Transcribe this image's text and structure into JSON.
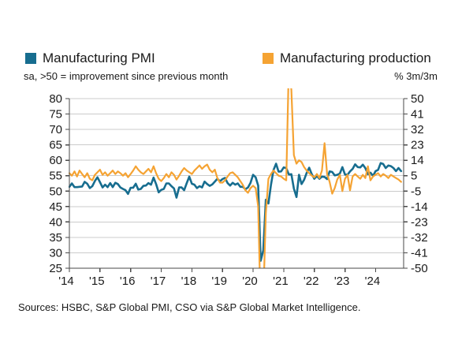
{
  "legend": {
    "pmi": {
      "label": "Manufacturing PMI",
      "subtitle": "sa, >50 = improvement since previous month"
    },
    "production": {
      "label": "Manufacturing production",
      "subtitle": "% 3m/3m"
    }
  },
  "source": "Sources: HSBC, S&P Global PMI, CSO via S&P Global Market Intelligence.",
  "colors": {
    "pmi_line": "#176d8f",
    "production_line": "#f5a333",
    "gridline": "#cbcbcb",
    "axis": "#4a4a4a",
    "text": "#1a1a1a"
  },
  "chart_data": {
    "type": "line",
    "title": "",
    "x_tick_labels": [
      "'14",
      "'15",
      "'16",
      "'17",
      "'18",
      "'19",
      "'20",
      "'21",
      "'22",
      "'23",
      "'24"
    ],
    "x_range": [
      2014,
      2024.9167
    ],
    "left_axis": {
      "label": "sa, >50 = improvement since previous month",
      "ticks": [
        80,
        75,
        70,
        65,
        60,
        55,
        50,
        45,
        40,
        35,
        30,
        25
      ],
      "range": [
        25,
        80
      ]
    },
    "right_axis": {
      "label": "% 3m/3m",
      "ticks": [
        50,
        41,
        32,
        23,
        14,
        5,
        -5,
        -14,
        -23,
        -32,
        -41,
        -50
      ]
    },
    "grid": true,
    "legend_position": "top",
    "series": [
      {
        "name": "Manufacturing PMI",
        "axis": "left",
        "color": "#176d8f",
        "start": 2014.0,
        "interval_years": 0.0833333,
        "values": [
          51.4,
          52.5,
          51.3,
          51.3,
          51.4,
          51.5,
          53.0,
          52.4,
          51.0,
          51.6,
          53.3,
          54.5,
          52.9,
          51.2,
          52.1,
          51.3,
          52.6,
          51.3,
          52.7,
          52.3,
          51.2,
          50.7,
          50.3,
          49.1,
          51.1,
          51.1,
          52.4,
          50.5,
          50.7,
          51.7,
          51.8,
          52.6,
          52.1,
          54.4,
          52.3,
          49.6,
          50.4,
          50.7,
          52.5,
          52.5,
          51.6,
          50.9,
          47.9,
          51.2,
          51.2,
          50.3,
          52.6,
          54.7,
          52.4,
          52.1,
          51.0,
          51.6,
          51.2,
          53.1,
          52.3,
          51.7,
          52.2,
          53.1,
          54.0,
          53.2,
          53.9,
          54.3,
          52.6,
          51.8,
          52.7,
          52.1,
          52.5,
          51.4,
          51.4,
          50.6,
          51.2,
          52.7,
          55.3,
          54.5,
          51.8,
          27.4,
          30.8,
          47.2,
          46.0,
          52.0,
          56.8,
          58.9,
          56.3,
          56.4,
          57.7,
          57.5,
          55.4,
          55.5,
          50.8,
          48.1,
          55.3,
          52.3,
          53.7,
          55.9,
          57.6,
          55.5,
          54.0,
          54.9,
          54.0,
          54.7,
          54.6,
          53.9,
          56.4,
          56.2,
          55.1,
          55.3,
          55.7,
          57.8,
          55.4,
          55.3,
          56.4,
          57.2,
          58.7,
          57.8,
          57.7,
          58.6,
          57.5,
          55.5,
          56.0,
          54.9,
          56.5,
          56.9,
          59.1,
          58.8,
          57.5,
          58.3,
          58.1,
          57.5,
          56.5,
          57.5,
          56.5
        ]
      },
      {
        "name": "Manufacturing production",
        "axis": "right",
        "color": "#f5a333",
        "start": 2014.0,
        "interval_years": 0.0833333,
        "values": [
          6.5,
          5.0,
          7.5,
          4.5,
          8.0,
          6.0,
          4.0,
          6.5,
          3.0,
          2.0,
          5.5,
          7.0,
          8.5,
          5.5,
          7.0,
          5.0,
          6.5,
          8.0,
          6.0,
          7.5,
          6.5,
          5.0,
          6.5,
          4.0,
          6.0,
          8.0,
          10.5,
          8.5,
          7.0,
          6.0,
          7.5,
          9.0,
          7.0,
          10.5,
          6.5,
          3.0,
          1.5,
          3.5,
          6.0,
          4.0,
          7.0,
          5.5,
          2.5,
          5.0,
          7.5,
          9.5,
          8.0,
          7.0,
          6.0,
          8.0,
          9.5,
          11.0,
          9.0,
          10.5,
          11.5,
          8.5,
          7.0,
          8.5,
          3.5,
          0.5,
          0.5,
          2.0,
          4.5,
          6.5,
          7.0,
          5.5,
          4.0,
          1.5,
          -1.0,
          -4.5,
          -6.0,
          -3.0,
          -1.5,
          -3.0,
          -14.0,
          -75.0,
          -68.0,
          -18.0,
          3.0,
          6.0,
          8.0,
          6.5,
          5.0,
          4.5,
          3.0,
          2.0,
          70.0,
          55.0,
          17.0,
          12.0,
          14.0,
          13.0,
          10.0,
          8.0,
          6.5,
          5.0,
          4.0,
          6.0,
          3.5,
          8.0,
          24.0,
          6.0,
          1.0,
          -6.5,
          -3.0,
          2.5,
          5.5,
          -5.0,
          3.0,
          5.5,
          -4.5,
          4.5,
          6.0,
          4.5,
          3.0,
          5.5,
          3.5,
          10.5,
          2.0,
          4.5,
          5.5,
          6.5,
          4.5,
          6.0,
          5.0,
          3.5,
          5.5,
          4.5,
          3.5,
          2.5,
          1.0
        ]
      }
    ]
  }
}
